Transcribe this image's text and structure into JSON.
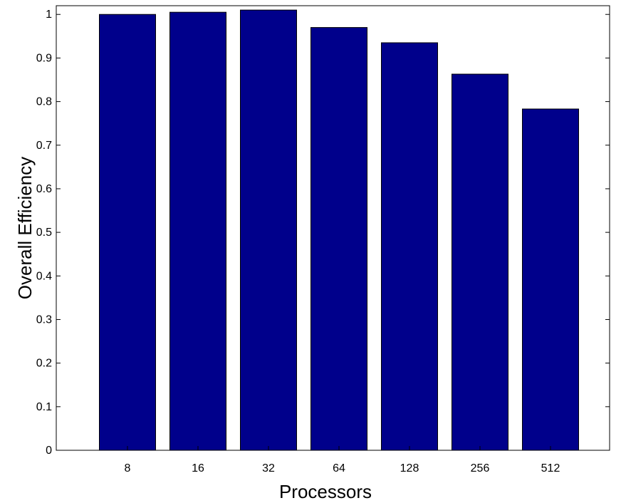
{
  "chart_data": {
    "type": "bar",
    "categories": [
      "8",
      "16",
      "32",
      "64",
      "128",
      "256",
      "512"
    ],
    "values": [
      1.0,
      1.005,
      1.01,
      0.97,
      0.935,
      0.863,
      0.783
    ],
    "title": "",
    "xlabel": "Processors",
    "ylabel": "Overall Efficiency",
    "ylim": [
      0,
      1.02
    ],
    "yticks": [
      0,
      0.1,
      0.2,
      0.3,
      0.4,
      0.5,
      0.6,
      0.7,
      0.8,
      0.9,
      1
    ],
    "ytick_labels": [
      "0",
      "0.1",
      "0.2",
      "0.3",
      "0.4",
      "0.5",
      "0.6",
      "0.7",
      "0.8",
      "0.9",
      "1"
    ],
    "bar_color": "#00008b",
    "grid": false
  }
}
